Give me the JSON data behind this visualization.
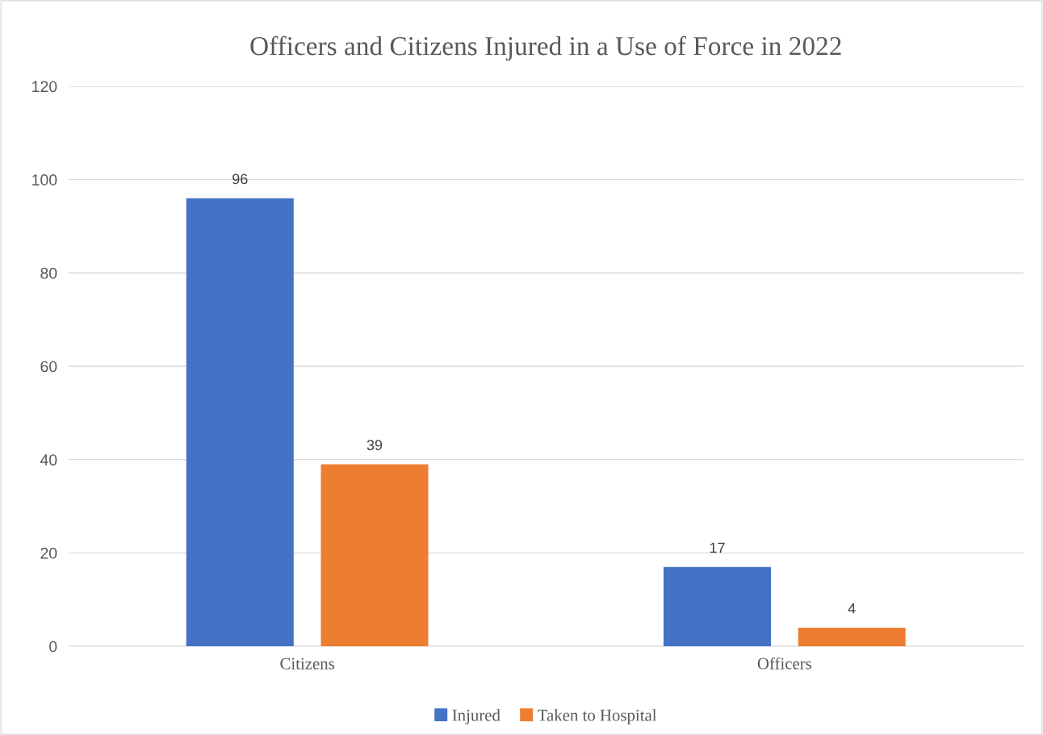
{
  "chart_data": {
    "type": "bar",
    "title": "Officers and Citizens Injured in a Use of Force in 2022",
    "categories": [
      "Citizens",
      "Officers"
    ],
    "series": [
      {
        "name": "Injured",
        "color": "#4472c4",
        "values": [
          96,
          17
        ]
      },
      {
        "name": "Taken to Hospital",
        "color": "#ed7d31",
        "values": [
          39,
          4
        ]
      }
    ],
    "ylim": [
      0,
      120
    ],
    "yticks": [
      0,
      20,
      40,
      60,
      80,
      100,
      120
    ],
    "grid": "y",
    "legend": "bottom",
    "data_labels": true
  }
}
